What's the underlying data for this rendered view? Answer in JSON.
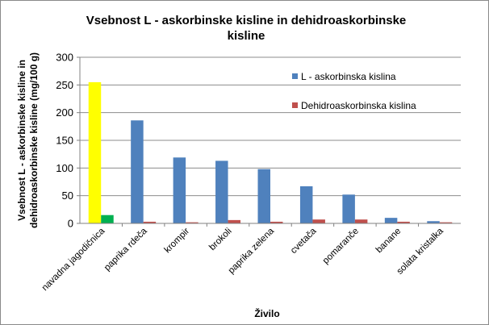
{
  "chart_data": {
    "type": "bar",
    "title_lines": [
      "Vsebnost L - askorbinske kisline in dehidroaskorbinske",
      "kisline"
    ],
    "xlabel": "Živilo",
    "ylabel_lines": [
      "Vsebnost L - askorbinske kisline in",
      "dehidroaskorbinske kisline (mg/100 g)"
    ],
    "categories": [
      "navadna jagodičnica",
      "paprika rdeča",
      "krompir",
      "brokoli",
      "paprika zelena",
      "cvetača",
      "pomaranče",
      "banane",
      "solata kristalka"
    ],
    "series": [
      {
        "name": "L - askorbinska kislina",
        "values": [
          255,
          186,
          119,
          113,
          98,
          67,
          52,
          10,
          4
        ],
        "color": "#4f81bd",
        "highlight": {
          "index": 0,
          "color": "#ffff00"
        }
      },
      {
        "name": "Dehidroaskorbinska kislina",
        "values": [
          15,
          3,
          2,
          6,
          3,
          7,
          7,
          3,
          2
        ],
        "color": "#c0504d",
        "highlight": {
          "index": 0,
          "color": "#00b050"
        }
      }
    ],
    "ylim": [
      0,
      300
    ],
    "yticks": [
      "0",
      "50",
      "100",
      "150",
      "200",
      "250",
      "300"
    ],
    "grid": true,
    "legend_position": "top-right inside plot"
  }
}
